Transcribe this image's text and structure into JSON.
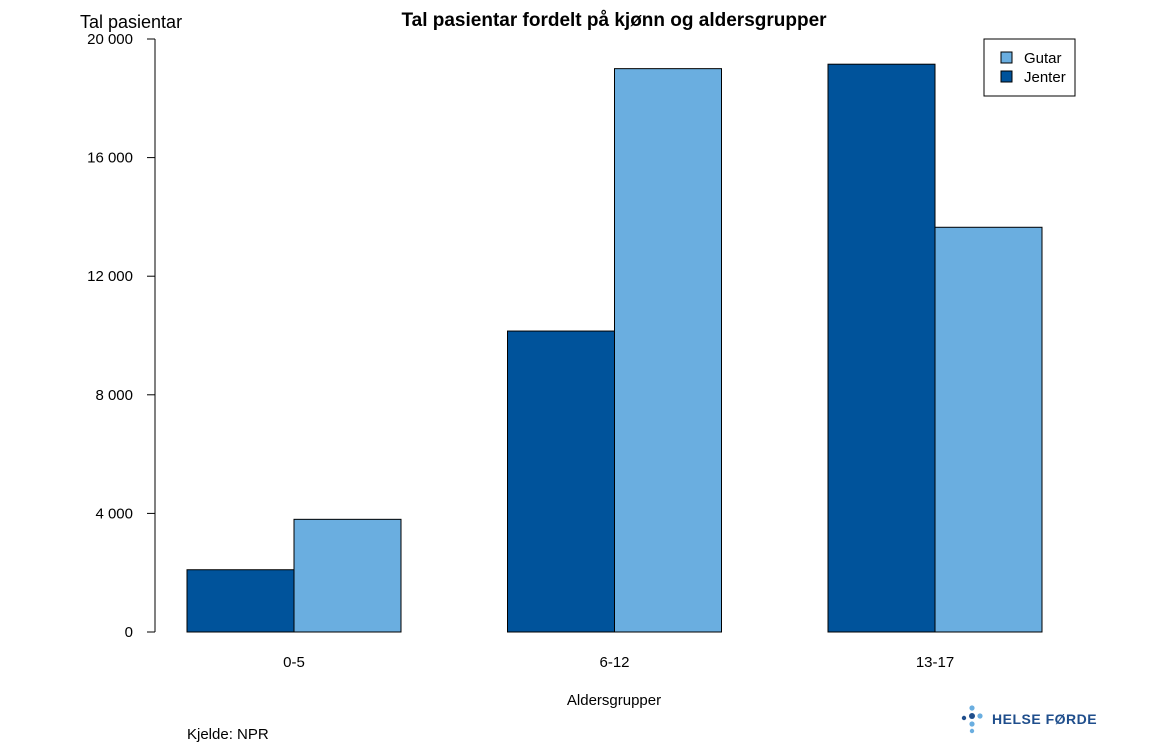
{
  "chart_data": {
    "type": "bar",
    "title": "Tal pasientar fordelt på kjønn og aldersgrupper",
    "ylabel": "Tal pasientar",
    "xlabel": "Aldersgrupper",
    "categories": [
      "0-5",
      "6-12",
      "13-17"
    ],
    "series": [
      {
        "name": "Jenter",
        "color": "#00539b",
        "values": [
          2100,
          10150,
          19150
        ]
      },
      {
        "name": "Gutar",
        "color": "#6aaee0",
        "values": [
          3800,
          19000,
          13650
        ]
      }
    ],
    "ylim": [
      0,
      20000
    ],
    "yticks": [
      0,
      4000,
      8000,
      12000,
      16000,
      20000
    ],
    "ytick_labels": [
      "0",
      "4 000",
      "8 000",
      "12 000",
      "16 000",
      "20 000"
    ],
    "legend": {
      "position": "top-right",
      "entries": [
        "Gutar",
        "Jenter"
      ]
    },
    "grid": false
  },
  "source_note": "Kjelde: NPR",
  "logo": {
    "text": "HELSE FØRDE",
    "icon": "dots-cross-icon",
    "color": "#1f4e8c",
    "dot_color": "#6aaee0"
  }
}
